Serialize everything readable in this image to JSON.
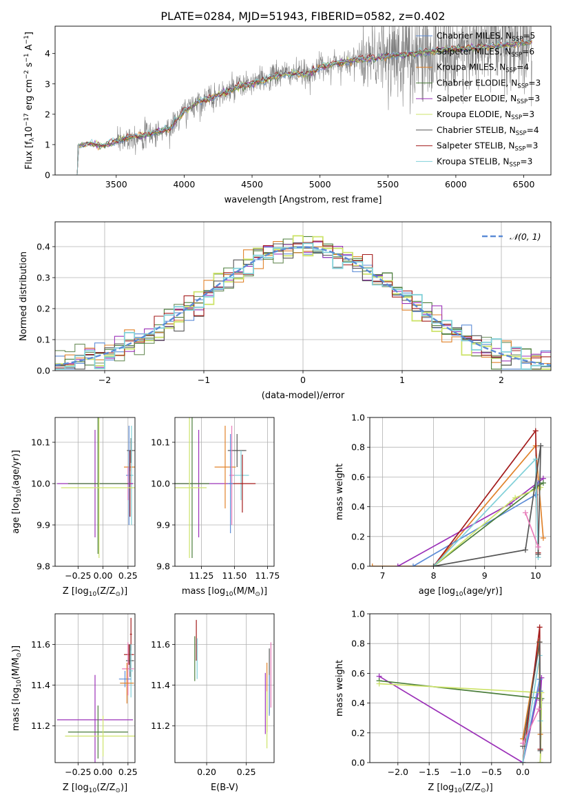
{
  "figure": {
    "title": "PLATE=0284, MJD=51943, FIBERID=0582, z=0.402"
  },
  "colors": {
    "chabrier_miles": "#5b8bd6",
    "salpeter_miles": "#6b8e5a",
    "kroupa_miles": "#e0822a",
    "chabrier_elodie": "#4a7d3a",
    "salpeter_elodie": "#9b30b8",
    "kroupa_elodie": "#cde36a",
    "chabrier_stelib": "#555555",
    "salpeter_stelib": "#a31a1a",
    "kroupa_stelib": "#80d0d8",
    "pink": "#e87ab8",
    "data": "#808080",
    "normal": "#5b8bd6"
  },
  "chart_data": [
    {
      "id": "spectrum",
      "type": "line",
      "title": "PLATE=0284, MJD=51943, FIBERID=0582, z=0.402",
      "xlabel": "wavelength [Angstrom, rest frame]",
      "ylabel": "Flux [f_λ 10^-17 erg cm^-2 s^-1 A^-1]",
      "ylabel_parts": {
        "a": "Flux [f",
        "b": "λ",
        "c": "10",
        "d": "−17",
        "e": " erg cm",
        "f": "−2",
        "g": " s",
        "h": "−1",
        "i": " A",
        "j": "−1",
        "k": "]"
      },
      "xlim": [
        3050,
        6700
      ],
      "ylim": [
        0,
        4.9
      ],
      "xticks": [
        3500,
        4000,
        4500,
        5000,
        5500,
        6000,
        6500
      ],
      "xtick_labels": [
        "3500",
        "4000",
        "4500",
        "5000",
        "5500",
        "6000",
        "6500"
      ],
      "yticks": [
        0,
        1,
        2,
        3,
        4
      ],
      "ytick_labels": [
        "0",
        "1",
        "2",
        "3",
        "4"
      ],
      "grid": false,
      "legend_position": "top-right",
      "legend": [
        {
          "base": "Chabrier MILES, N",
          "sub": "SSP",
          "tail": "=5",
          "color": "#5b8bd6"
        },
        {
          "base": "Salpeter MILES, N",
          "sub": "SSP",
          "tail": "=6",
          "color": "#6b8e5a"
        },
        {
          "base": "Kroupa MILES, N",
          "sub": "SSP",
          "tail": "=4",
          "color": "#e0822a"
        },
        {
          "base": "Chabrier ELODIE, N",
          "sub": "SSP",
          "tail": "=3",
          "color": "#4a7d3a"
        },
        {
          "base": "Salpeter ELODIE, N",
          "sub": "SSP",
          "tail": "=3",
          "color": "#9b30b8"
        },
        {
          "base": "Kroupa ELODIE, N",
          "sub": "SSP",
          "tail": "=3",
          "color": "#cde36a"
        },
        {
          "base": "Chabrier STELIB, N",
          "sub": "SSP",
          "tail": "=4",
          "color": "#555555"
        },
        {
          "base": "Salpeter STELIB, N",
          "sub": "SSP",
          "tail": "=3",
          "color": "#a31a1a"
        },
        {
          "base": "Kroupa STELIB, N",
          "sub": "SSP",
          "tail": "=3",
          "color": "#80d0d8"
        }
      ],
      "spectrum_start": 3200,
      "spectrum_end": 6560,
      "continuum_points": [
        [
          3200,
          0
        ],
        [
          3215,
          0.95
        ],
        [
          3300,
          1.05
        ],
        [
          3400,
          0.95
        ],
        [
          3500,
          1.1
        ],
        [
          3600,
          1.25
        ],
        [
          3700,
          1.3
        ],
        [
          3800,
          1.4
        ],
        [
          3900,
          1.55
        ],
        [
          4000,
          2.1
        ],
        [
          4100,
          2.4
        ],
        [
          4200,
          2.55
        ],
        [
          4300,
          2.7
        ],
        [
          4400,
          2.9
        ],
        [
          4500,
          3.0
        ],
        [
          4600,
          3.15
        ],
        [
          4700,
          3.3
        ],
        [
          4800,
          3.35
        ],
        [
          4900,
          3.3
        ],
        [
          5000,
          3.55
        ],
        [
          5200,
          3.75
        ],
        [
          5400,
          3.85
        ],
        [
          5600,
          3.95
        ],
        [
          5800,
          4.05
        ],
        [
          6000,
          4.15
        ],
        [
          6200,
          4.2
        ],
        [
          6400,
          4.3
        ],
        [
          6560,
          4.4
        ]
      ]
    },
    {
      "id": "residuals",
      "type": "histogram",
      "xlabel": "(data-model)/error",
      "ylabel": "Normed distribution",
      "xlim": [
        -2.5,
        2.5
      ],
      "ylim": [
        0,
        0.48
      ],
      "xticks": [
        -2,
        -1,
        0,
        1,
        2
      ],
      "xtick_labels": [
        "−2",
        "−1",
        "0",
        "1",
        "2"
      ],
      "yticks": [
        0,
        0.1,
        0.2,
        0.3,
        0.4
      ],
      "ytick_labels": [
        "0.0",
        "0.1",
        "0.2",
        "0.3",
        "0.4"
      ],
      "grid": true,
      "legend_position": "top-right",
      "legend": [
        {
          "label": "𝒩(0, 1)",
          "style": "dashed",
          "color": "#5b8bd6"
        }
      ],
      "bin_width": 0.1
    },
    {
      "id": "age_vs_Z",
      "type": "errorbar",
      "xlabel": "Z [log10(Z/Z⊙)]",
      "xlabel_parts": {
        "a": "Z [log",
        "b": "10",
        "c": "(Z/Z",
        "d": "⊙",
        "e": ")]"
      },
      "ylabel": "age [log10(age/yr)]",
      "ylabel_parts": {
        "a": "age  [log",
        "b": "10",
        "c": "(age/yr)]"
      },
      "xlim": [
        -0.48,
        0.32
      ],
      "ylim": [
        9.8,
        10.16
      ],
      "xticks": [
        -0.25,
        0.0,
        0.25
      ],
      "xtick_labels": [
        "−0.25",
        "0.00",
        "0.25"
      ],
      "yticks": [
        9.8,
        9.9,
        10.0,
        10.1
      ],
      "ytick_labels": [
        "9.8",
        "9.9",
        "10.0",
        "10.1"
      ],
      "grid": true,
      "points": [
        {
          "x": 0.28,
          "y": 10.08,
          "xerr": 0.04,
          "yerr": 0.03,
          "color": "#555555"
        },
        {
          "x": 0.27,
          "y": 10.04,
          "xerr": 0.06,
          "yerr": 0.01,
          "color": "#e0822a"
        },
        {
          "x": 0.26,
          "y": 10.02,
          "xerr": 0.03,
          "yerr": 0.12,
          "color": "#5b8bd6"
        },
        {
          "x": 0.285,
          "y": 10.02,
          "xerr": 0.02,
          "yerr": 0.12,
          "color": "#80d0d8"
        },
        {
          "x": 0.27,
          "y": 10.0,
          "xerr": 0.03,
          "yerr": 0.08,
          "color": "#a31a1a"
        },
        {
          "x": 0.25,
          "y": 10.0,
          "xerr": 0.01,
          "yerr": 0.04,
          "color": "#e87ab8"
        },
        {
          "x": -0.08,
          "y": 10.0,
          "xerr": 0.38,
          "yerr": 0.13,
          "color": "#9b30b8"
        },
        {
          "x": -0.05,
          "y": 10.0,
          "xerr": 0.3,
          "yerr": 0.17,
          "color": "#4a7d3a"
        },
        {
          "x": -0.04,
          "y": 9.99,
          "xerr": 0.38,
          "yerr": 0.17,
          "color": "#cde36a"
        }
      ]
    },
    {
      "id": "age_vs_mass",
      "type": "errorbar",
      "xlabel": "mass [log10(M/M⊙)]",
      "xlabel_parts": {
        "a": "mass [log",
        "b": "10",
        "c": "(M/M",
        "d": "⊙",
        "e": ")]"
      },
      "ylabel": "",
      "xlim": [
        11.05,
        11.8
      ],
      "ylim": [
        9.8,
        10.16
      ],
      "xticks": [
        11.25,
        11.5,
        11.75
      ],
      "xtick_labels": [
        "11.25",
        "11.50",
        "11.75"
      ],
      "yticks": [
        9.8,
        9.9,
        10.0,
        10.1
      ],
      "ytick_labels": [
        "9.8",
        "9.9",
        "10.0",
        "10.1"
      ],
      "grid": true,
      "points": [
        {
          "x": 11.23,
          "y": 10.0,
          "xerr": 0.25,
          "yerr": 0.13,
          "color": "#9b30b8"
        },
        {
          "x": 11.18,
          "y": 10.0,
          "xerr": 0.13,
          "yerr": 0.18,
          "color": "#4a7d3a"
        },
        {
          "x": 11.16,
          "y": 9.99,
          "xerr": 0.13,
          "yerr": 0.17,
          "color": "#cde36a"
        },
        {
          "x": 11.43,
          "y": 10.04,
          "xerr": 0.08,
          "yerr": 0.1,
          "color": "#e0822a"
        },
        {
          "x": 11.52,
          "y": 10.08,
          "xerr": 0.07,
          "yerr": 0.04,
          "color": "#555555"
        },
        {
          "x": 11.55,
          "y": 10.02,
          "xerr": 0.06,
          "yerr": 0.06,
          "color": "#80d0d8"
        },
        {
          "x": 11.56,
          "y": 10.0,
          "xerr": 0.1,
          "yerr": 0.07,
          "color": "#a31a1a"
        },
        {
          "x": 11.48,
          "y": 10.02,
          "xerr": 0.02,
          "yerr": 0.12,
          "color": "#e87ab8"
        },
        {
          "x": 11.47,
          "y": 10.0,
          "xerr": 0.02,
          "yerr": 0.12,
          "color": "#5b8bd6"
        }
      ]
    },
    {
      "id": "mass_weight_vs_age",
      "type": "line",
      "xlabel": "age [log10(age/yr)]",
      "xlabel_parts": {
        "a": "age  [log",
        "b": "10",
        "c": "(age/yr)]"
      },
      "ylabel": "mass weight",
      "xlim": [
        6.75,
        10.3
      ],
      "ylim": [
        0,
        1.0
      ],
      "xticks": [
        7,
        8,
        9,
        10
      ],
      "xtick_labels": [
        "7",
        "8",
        "9",
        "10"
      ],
      "yticks": [
        0,
        0.2,
        0.4,
        0.6,
        0.8,
        1.0
      ],
      "ytick_labels": [
        "0.0",
        "0.2",
        "0.4",
        "0.6",
        "0.8",
        "1.0"
      ],
      "grid": true,
      "series": [
        {
          "color": "#e0822a",
          "x": [
            6.8,
            8.0,
            10.0,
            10.15
          ],
          "y": [
            0.0,
            0.0,
            0.81,
            0.19
          ]
        },
        {
          "color": "#9b30b8",
          "x": [
            7.3,
            9.5,
            10.15
          ],
          "y": [
            0.0,
            0.42,
            0.59
          ]
        },
        {
          "color": "#5b8bd6",
          "x": [
            7.6,
            10.0,
            10.05
          ],
          "y": [
            0.0,
            0.48,
            0.56
          ]
        },
        {
          "color": "#4a7d3a",
          "x": [
            8.0,
            10.0,
            10.15
          ],
          "y": [
            0.0,
            0.53,
            0.56
          ]
        },
        {
          "color": "#cde36a",
          "x": [
            8.0,
            9.6,
            10.1
          ],
          "y": [
            0.0,
            0.46,
            0.53
          ]
        },
        {
          "color": "#a31a1a",
          "x": [
            8.0,
            10.0,
            10.05
          ],
          "y": [
            0.0,
            0.91,
            0.09
          ]
        },
        {
          "color": "#80d0d8",
          "x": [
            8.0,
            10.0,
            10.05
          ],
          "y": [
            0.0,
            0.72,
            0.06
          ]
        },
        {
          "color": "#555555",
          "x": [
            8.0,
            9.8,
            10.1,
            10.05
          ],
          "y": [
            0.0,
            0.11,
            0.81,
            0.08
          ]
        },
        {
          "color": "#e87ab8",
          "x": [
            9.8,
            10.05
          ],
          "y": [
            0.36,
            0.13
          ]
        }
      ]
    },
    {
      "id": "mass_vs_Z",
      "type": "errorbar",
      "xlabel": "Z [log10(Z/Z⊙)]",
      "xlabel_parts": {
        "a": "Z [log",
        "b": "10",
        "c": "(Z/Z",
        "d": "⊙",
        "e": ")]"
      },
      "ylabel": "mass [log10(M/M⊙)]",
      "ylabel_parts": {
        "a": "mass [log",
        "b": "10",
        "c": "(M/M",
        "d": "⊙",
        "e": ")]"
      },
      "xlim": [
        -0.48,
        0.32
      ],
      "ylim": [
        11.02,
        11.75
      ],
      "xticks": [
        -0.25,
        0.0,
        0.25
      ],
      "xtick_labels": [
        "−0.25",
        "0.00",
        "0.25"
      ],
      "yticks": [
        11.2,
        11.4,
        11.6
      ],
      "ytick_labels": [
        "11.2",
        "11.4",
        "11.6"
      ],
      "grid": true,
      "points": [
        {
          "x": 0.28,
          "y": 11.65,
          "xerr": 0.01,
          "yerr": 0.08,
          "color": "#a31a1a"
        },
        {
          "x": 0.26,
          "y": 11.55,
          "xerr": 0.05,
          "yerr": 0.05,
          "color": "#a31a1a"
        },
        {
          "x": 0.27,
          "y": 11.52,
          "xerr": 0.04,
          "yerr": 0.08,
          "color": "#555555"
        },
        {
          "x": 0.25,
          "y": 11.48,
          "xerr": 0.06,
          "yerr": 0.13,
          "color": "#e87ab8"
        },
        {
          "x": 0.28,
          "y": 11.47,
          "xerr": 0.02,
          "yerr": 0.13,
          "color": "#80d0d8"
        },
        {
          "x": 0.22,
          "y": 11.43,
          "xerr": 0.06,
          "yerr": 0.04,
          "color": "#5b8bd6"
        },
        {
          "x": 0.24,
          "y": 11.41,
          "xerr": 0.07,
          "yerr": 0.1,
          "color": "#e0822a"
        },
        {
          "x": -0.08,
          "y": 11.23,
          "xerr": 0.38,
          "yerr": 0.22,
          "color": "#9b30b8"
        },
        {
          "x": -0.05,
          "y": 11.17,
          "xerr": 0.3,
          "yerr": 0.13,
          "color": "#4a7d3a"
        },
        {
          "x": -0.0,
          "y": 11.15,
          "xerr": 0.38,
          "yerr": 0.1,
          "color": "#cde36a"
        }
      ]
    },
    {
      "id": "mass_vs_ebv",
      "type": "errorbar",
      "xlabel": "E(B-V)",
      "ylabel": "",
      "xlim": [
        0.16,
        0.285
      ],
      "ylim": [
        11.02,
        11.75
      ],
      "xticks": [
        0.2,
        0.25
      ],
      "xtick_labels": [
        "0.20",
        "0.25"
      ],
      "yticks": [
        11.2,
        11.4,
        11.6
      ],
      "ytick_labels": [
        "11.2",
        "11.4",
        "11.6"
      ],
      "grid": true,
      "points": [
        {
          "x": 0.187,
          "y": 11.62,
          "xerr": 0.0,
          "yerr": 0.1,
          "color": "#a31a1a"
        },
        {
          "x": 0.185,
          "y": 11.53,
          "xerr": 0.0,
          "yerr": 0.11,
          "color": "#4a7d3a"
        },
        {
          "x": 0.188,
          "y": 11.53,
          "xerr": 0.0,
          "yerr": 0.1,
          "color": "#80d0d8"
        },
        {
          "x": 0.274,
          "y": 11.31,
          "xerr": 0.0,
          "yerr": 0.15,
          "color": "#9b30b8"
        },
        {
          "x": 0.276,
          "y": 11.34,
          "xerr": 0.0,
          "yerr": 0.17,
          "color": "#e0822a"
        },
        {
          "x": 0.276,
          "y": 11.23,
          "xerr": 0.0,
          "yerr": 0.14,
          "color": "#cde36a"
        },
        {
          "x": 0.279,
          "y": 11.42,
          "xerr": 0.0,
          "yerr": 0.16,
          "color": "#555555"
        },
        {
          "x": 0.281,
          "y": 11.45,
          "xerr": 0.0,
          "yerr": 0.16,
          "color": "#e87ab8"
        },
        {
          "x": 0.279,
          "y": 11.35,
          "xerr": 0.0,
          "yerr": 0.1,
          "color": "#5b8bd6"
        }
      ]
    },
    {
      "id": "mass_weight_vs_Z",
      "type": "line",
      "xlabel": "Z [log10(Z/Z⊙)]",
      "xlabel_parts": {
        "a": "Z [log",
        "b": "10",
        "c": "(Z/Z",
        "d": "⊙",
        "e": ")]"
      },
      "ylabel": "mass weight",
      "xlim": [
        -2.45,
        0.45
      ],
      "ylim": [
        0,
        1.0
      ],
      "xticks": [
        -2.0,
        -1.5,
        -1.0,
        -0.5,
        0.0,
        0.5
      ],
      "xtick_labels": [
        "−2.0",
        "−1.5",
        "−1.0",
        "−0.5",
        "0.0",
        "0.5"
      ],
      "yticks": [
        0,
        0.2,
        0.4,
        0.6,
        0.8,
        1.0
      ],
      "ytick_labels": [
        "0.0",
        "0.2",
        "0.4",
        "0.6",
        "0.8",
        "1.0"
      ],
      "grid": true,
      "series": [
        {
          "color": "#9b30b8",
          "x": [
            -2.3,
            0.0,
            0.3,
            0.28
          ],
          "y": [
            0.58,
            0.0,
            0.57,
            0.42
          ]
        },
        {
          "color": "#4a7d3a",
          "x": [
            -2.3,
            0.3,
            0.28
          ],
          "y": [
            0.55,
            0.43,
            0.0
          ]
        },
        {
          "color": "#cde36a",
          "x": [
            -2.3,
            0.3,
            0.28
          ],
          "y": [
            0.53,
            0.47,
            0.0
          ]
        },
        {
          "color": "#e0822a",
          "x": [
            0.0,
            0.26,
            0.28
          ],
          "y": [
            0.16,
            0.81,
            0.19
          ]
        },
        {
          "color": "#5b8bd6",
          "x": [
            0.0,
            0.27,
            0.28
          ],
          "y": [
            0.0,
            0.56,
            0.48
          ]
        },
        {
          "color": "#a31a1a",
          "x": [
            0.0,
            0.27,
            0.28
          ],
          "y": [
            0.0,
            0.91,
            0.09
          ]
        },
        {
          "color": "#80d0d8",
          "x": [
            0.0,
            0.27,
            0.28
          ],
          "y": [
            0.0,
            0.72,
            0.28
          ]
        },
        {
          "color": "#555555",
          "x": [
            0.0,
            0.27,
            0.28
          ],
          "y": [
            0.11,
            0.81,
            0.08
          ]
        },
        {
          "color": "#e87ab8",
          "x": [
            0.0,
            0.26
          ],
          "y": [
            0.13,
            0.36
          ]
        }
      ]
    }
  ]
}
